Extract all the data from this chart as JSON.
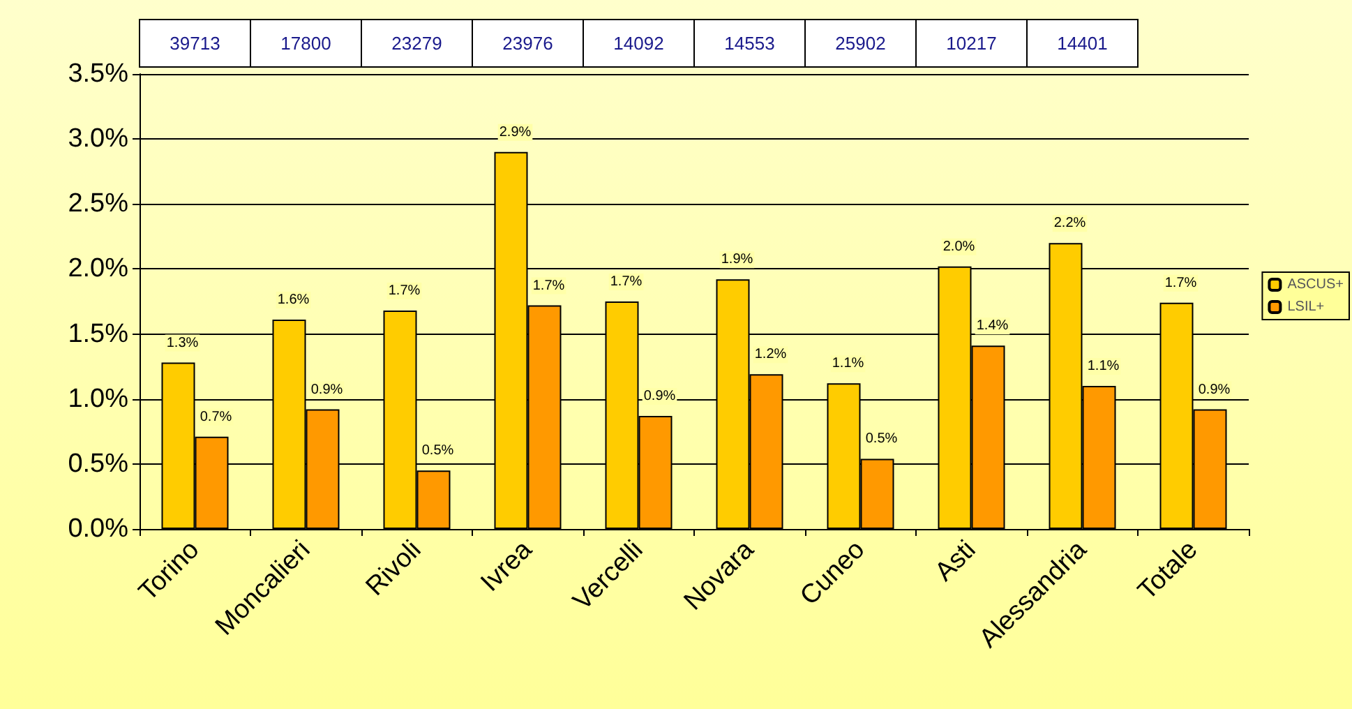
{
  "chart_data": {
    "type": "bar",
    "categories": [
      "Torino",
      "Moncalieri",
      "Rivoli",
      "Ivrea",
      "Vercelli",
      "Novara",
      "Cuneo",
      "Asti",
      "Alessandria",
      "Totale"
    ],
    "series": [
      {
        "name": "ASCUS+",
        "color": "#ffcc00",
        "values": [
          1.28,
          1.61,
          1.68,
          2.9,
          1.75,
          1.92,
          1.12,
          2.02,
          2.2,
          1.74
        ],
        "value_labels": [
          "1.3%",
          "1.6%",
          "1.7%",
          "2.9%",
          "1.7%",
          "1.9%",
          "1.1%",
          "2.0%",
          "2.2%",
          "1.7%"
        ]
      },
      {
        "name": "LSIL+",
        "color": "#ff9900",
        "values": [
          0.71,
          0.92,
          0.45,
          1.72,
          0.87,
          1.19,
          0.54,
          1.41,
          1.1,
          0.92
        ],
        "value_labels": [
          "0.7%",
          "0.9%",
          "0.5%",
          "1.7%",
          "0.9%",
          "1.2%",
          "0.5%",
          "1.4%",
          "1.1%",
          "0.9%"
        ]
      }
    ],
    "ylim": [
      0,
      3.5
    ],
    "yticks": [
      {
        "value": 0,
        "label": "0.0%"
      },
      {
        "value": 0.5,
        "label": "0.5%"
      },
      {
        "value": 1,
        "label": "1.0%"
      },
      {
        "value": 1.5,
        "label": "1.5%"
      },
      {
        "value": 2,
        "label": "2.0%"
      },
      {
        "value": 2.5,
        "label": "2.5%"
      },
      {
        "value": 3,
        "label": "3.0%"
      },
      {
        "value": 3.5,
        "label": "3.5%"
      }
    ],
    "grid": "y",
    "legend": "right",
    "annotations": [
      "39713",
      "17800",
      "23279",
      "23976",
      "14092",
      "14553",
      "25902",
      "10217",
      "14401"
    ]
  }
}
